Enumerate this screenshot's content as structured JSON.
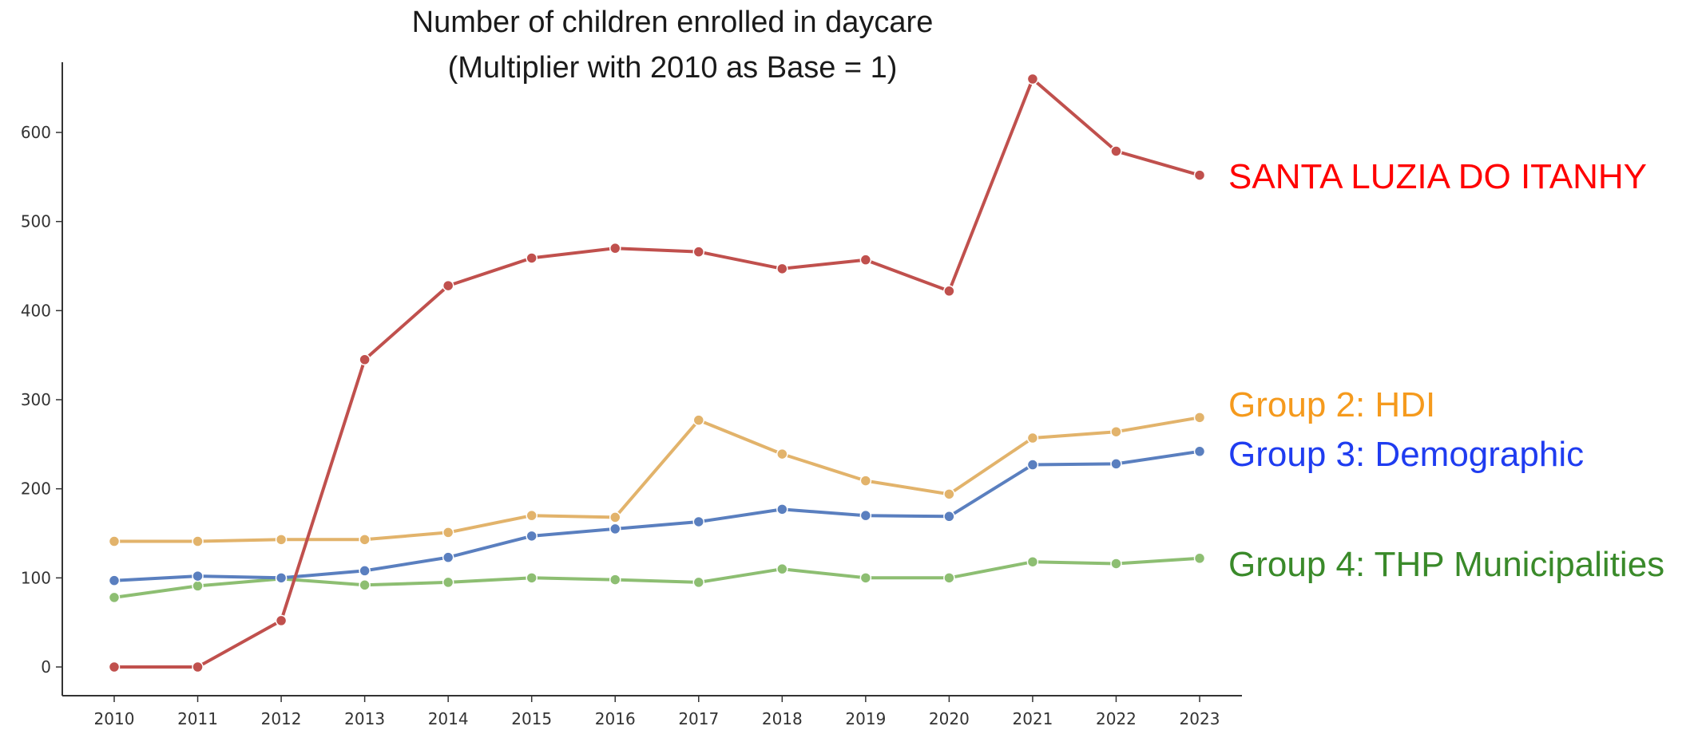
{
  "chart_data": {
    "type": "line",
    "title_lines": [
      "Number of children enrolled in daycare",
      "(Multiplier with 2010 as Base = 1)"
    ],
    "xlabel": "",
    "ylabel": "",
    "x": [
      "2010",
      "2011",
      "2012",
      "2013",
      "2014",
      "2015",
      "2016",
      "2017",
      "2018",
      "2019",
      "2020",
      "2021",
      "2022",
      "2023"
    ],
    "yticks": [
      "0",
      "100",
      "200",
      "300",
      "400",
      "500",
      "600"
    ],
    "ylim": [
      -30,
      680
    ],
    "grid": false,
    "legend": "direct labels at right end of lines",
    "series": [
      {
        "name": "SANTA LUZIA DO ITANHY",
        "color": "#c0504d",
        "label_color": "#ff0000",
        "values": [
          0,
          0,
          52,
          345,
          428,
          459,
          470,
          466,
          447,
          457,
          422,
          660,
          579,
          552
        ]
      },
      {
        "name": "Group 2: HDI",
        "color": "#e2b36b",
        "label_color": "#f59a1d",
        "values": [
          141,
          141,
          143,
          143,
          151,
          170,
          168,
          277,
          239,
          209,
          194,
          257,
          264,
          280
        ]
      },
      {
        "name": "Group 3: Demographic",
        "color": "#5a7fbf",
        "label_color": "#1f3cf0",
        "values": [
          97,
          102,
          100,
          108,
          123,
          147,
          155,
          163,
          177,
          170,
          169,
          227,
          228,
          242
        ]
      },
      {
        "name": "Group 4: THP Municipalities",
        "color": "#8dbe72",
        "label_color": "#3a8a2a",
        "values": [
          78,
          91,
          99,
          92,
          95,
          100,
          98,
          95,
          110,
          100,
          100,
          118,
          116,
          122
        ]
      }
    ]
  }
}
